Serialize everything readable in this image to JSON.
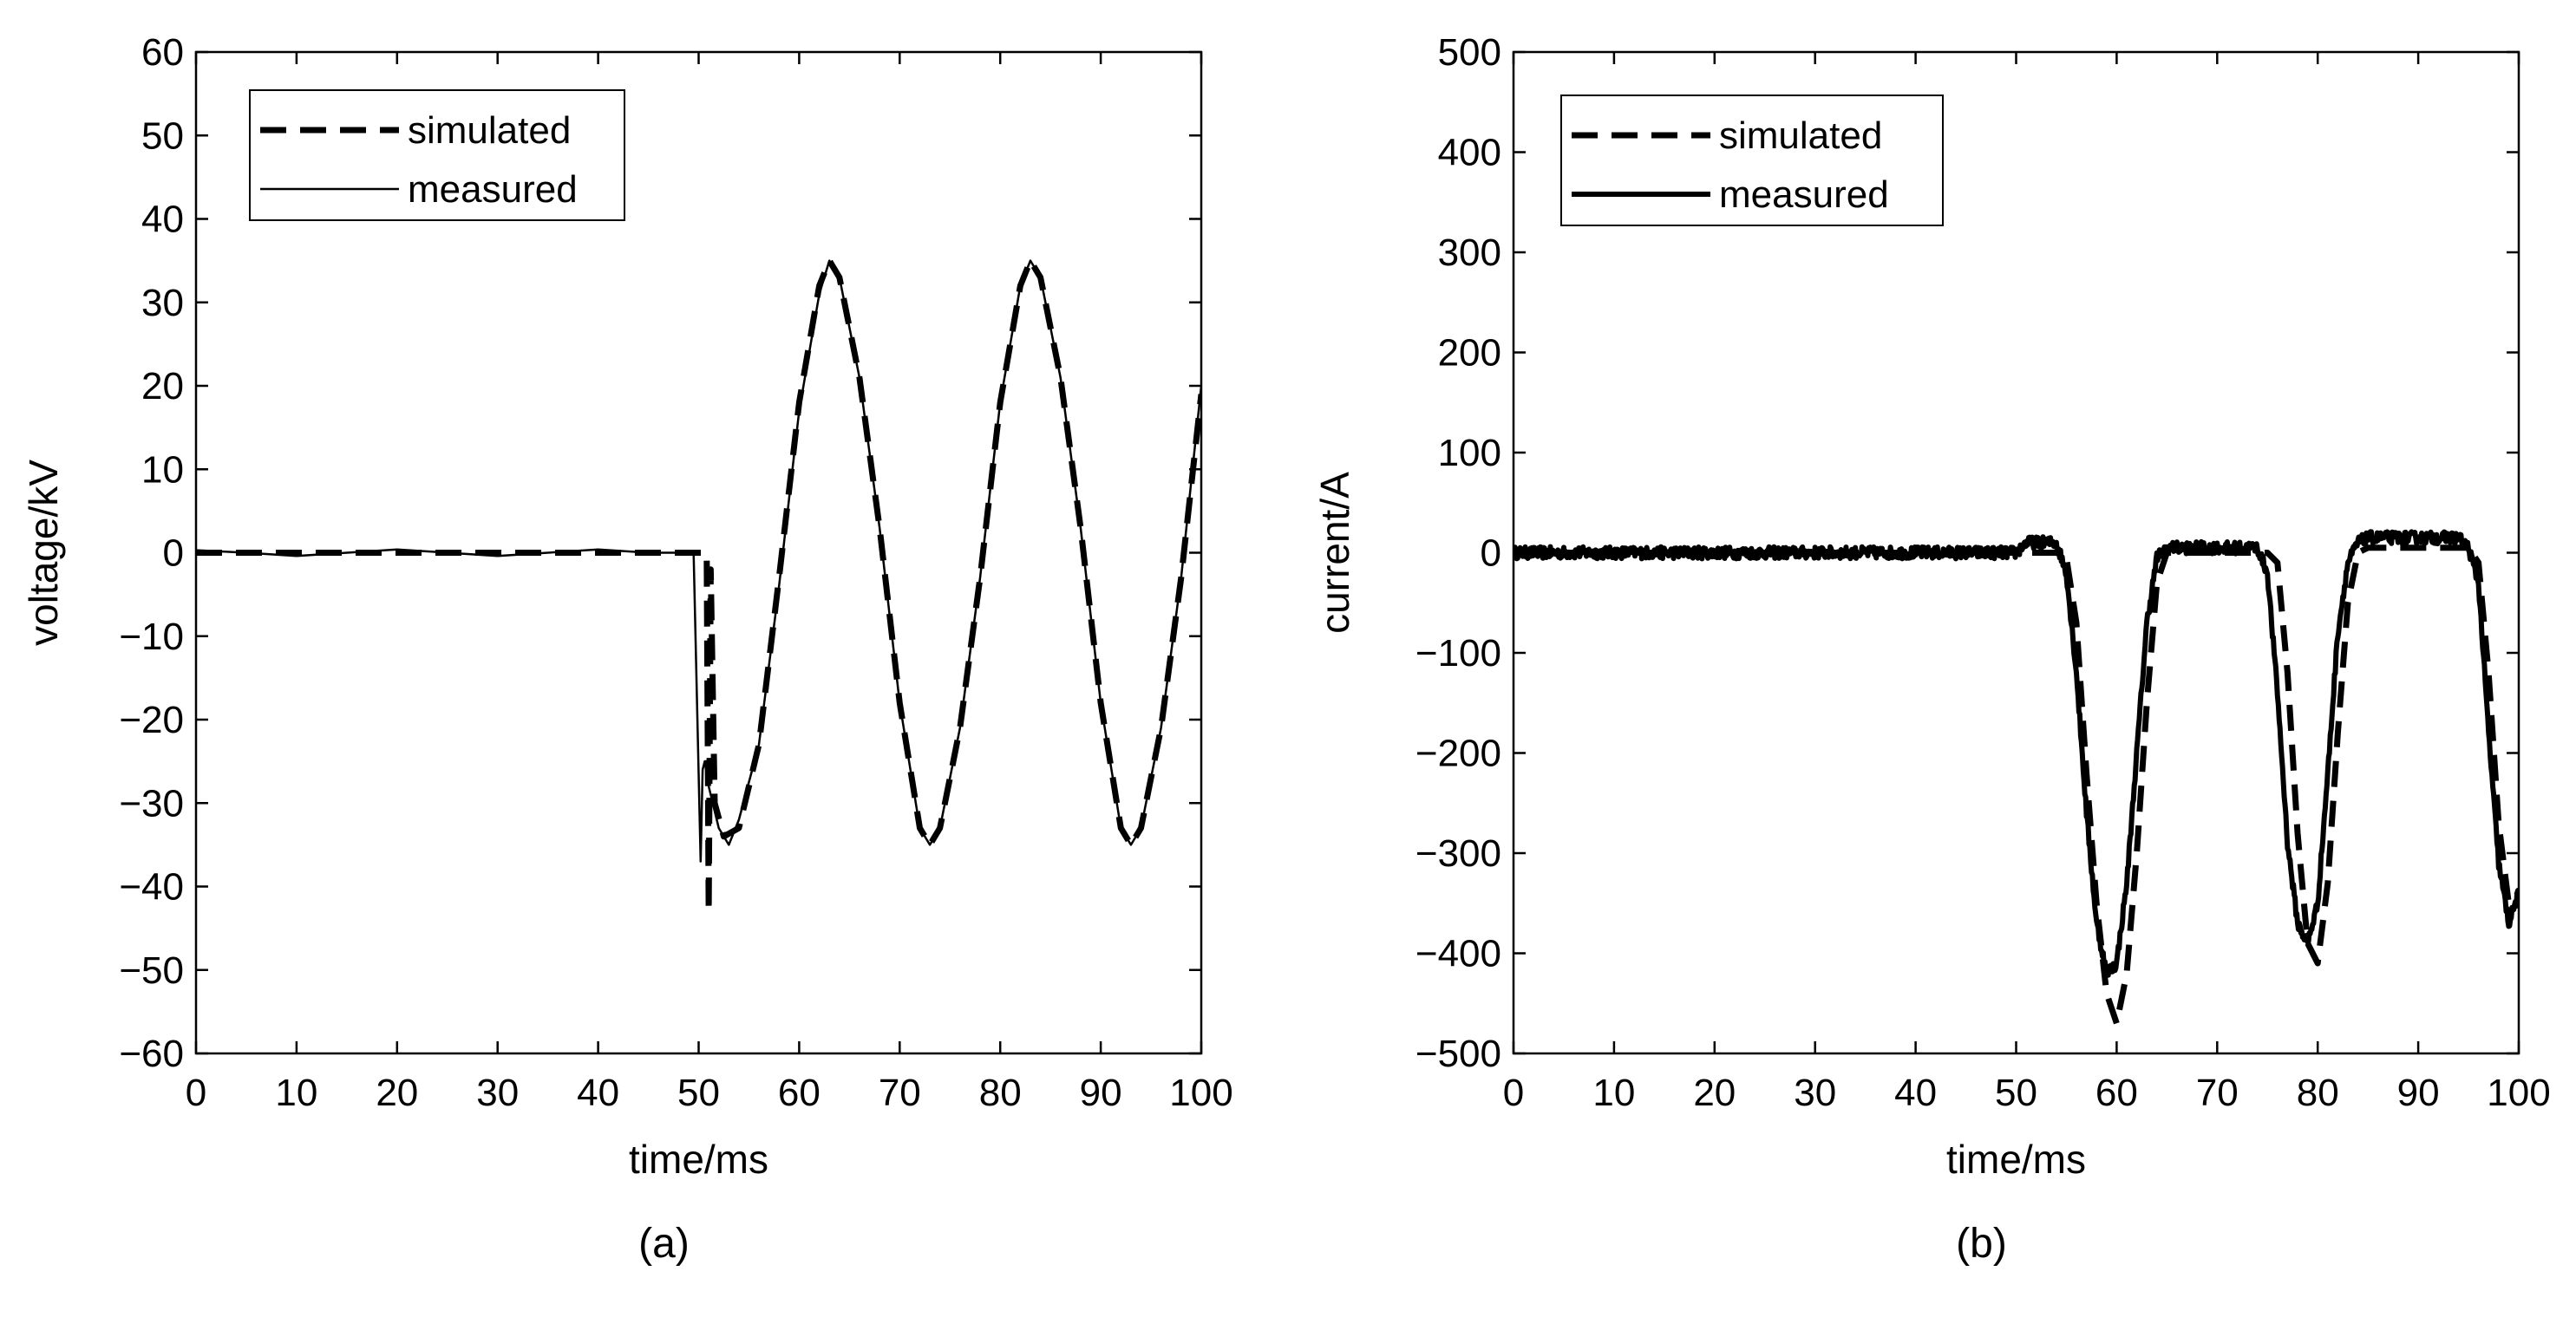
{
  "chart_data": [
    {
      "type": "line",
      "panel_label": "(a)",
      "xlabel": "time/ms",
      "ylabel": "voltage/kV",
      "xlim": [
        0,
        100
      ],
      "ylim": [
        -60,
        60
      ],
      "xticks": [
        0,
        10,
        20,
        30,
        40,
        50,
        60,
        70,
        80,
        90,
        100
      ],
      "yticks": [
        -60,
        -50,
        -40,
        -30,
        -20,
        -10,
        0,
        10,
        20,
        30,
        40,
        50,
        60
      ],
      "grid": false,
      "legend_position": "top-left",
      "series": [
        {
          "name": "simulated",
          "style": "dashed",
          "color": "#000000",
          "x": [
            0,
            10,
            20,
            30,
            40,
            48,
            50.8,
            51.0,
            51.2,
            51.6,
            52.5,
            54,
            56,
            58,
            60,
            62,
            63,
            64,
            66,
            68,
            70,
            72,
            73,
            74,
            76,
            78,
            80,
            82,
            83,
            84,
            86,
            88,
            90,
            92,
            93,
            94,
            96,
            98,
            100
          ],
          "y": [
            0,
            0,
            0,
            0,
            0,
            0,
            0,
            -43,
            -2,
            -30,
            -34,
            -33,
            -23,
            -3,
            18,
            32,
            35,
            33,
            21,
            3,
            -18,
            -33,
            -35,
            -33,
            -21,
            -3,
            18,
            32,
            35,
            33,
            21,
            3,
            -18,
            -33,
            -35,
            -33,
            -21,
            -3,
            19
          ]
        },
        {
          "name": "measured",
          "style": "solid-thin",
          "color": "#000000",
          "x": [
            0,
            5,
            10,
            15,
            20,
            25,
            30,
            35,
            40,
            45,
            49.5,
            50.2,
            50.4,
            50.6,
            51,
            52,
            53,
            54,
            56,
            58,
            60,
            62,
            63,
            64,
            66,
            68,
            70,
            72,
            73,
            74,
            76,
            78,
            80,
            82,
            83,
            84,
            86,
            88,
            90,
            92,
            93,
            94,
            96,
            98,
            100
          ],
          "y": [
            0.3,
            0,
            -0.4,
            0,
            0.4,
            0,
            -0.4,
            0,
            0.4,
            0,
            0,
            -37,
            -26,
            -25,
            -28,
            -33,
            -35,
            -32,
            -23,
            -4,
            17,
            31,
            35,
            33,
            21,
            3,
            -18,
            -33,
            -35,
            -33,
            -21,
            -3,
            18,
            32,
            35,
            33,
            21,
            3,
            -18,
            -33,
            -35,
            -33,
            -21,
            -3,
            20
          ]
        }
      ]
    },
    {
      "type": "line",
      "panel_label": "(b)",
      "xlabel": "time/ms",
      "ylabel": "current/A",
      "xlim": [
        0,
        100
      ],
      "ylim": [
        -500,
        500
      ],
      "xticks": [
        0,
        10,
        20,
        30,
        40,
        50,
        60,
        70,
        80,
        90,
        100
      ],
      "yticks": [
        -500,
        -400,
        -300,
        -200,
        -100,
        0,
        100,
        200,
        300,
        400,
        500
      ],
      "grid": false,
      "legend_position": "top-left",
      "series": [
        {
          "name": "simulated",
          "style": "dashed",
          "color": "#000000",
          "x": [
            0,
            10,
            20,
            30,
            40,
            50,
            54,
            55,
            56,
            57,
            58,
            59,
            60,
            61,
            62,
            63,
            64,
            65,
            70,
            75,
            76,
            77,
            78,
            79,
            80,
            81,
            82,
            83,
            84,
            85,
            90,
            95,
            96,
            97,
            98,
            99,
            100
          ],
          "y": [
            0,
            0,
            0,
            0,
            0,
            0,
            0,
            -5,
            -70,
            -220,
            -350,
            -440,
            -470,
            -420,
            -300,
            -150,
            -30,
            0,
            0,
            0,
            -10,
            -120,
            -280,
            -390,
            -410,
            -330,
            -180,
            -50,
            0,
            5,
            5,
            5,
            -10,
            -120,
            -270,
            -350,
            -340
          ]
        },
        {
          "name": "measured",
          "style": "solid-thick",
          "color": "#000000",
          "noise": 6,
          "x": [
            0,
            10,
            20,
            30,
            40,
            50,
            50.5,
            51,
            54,
            55,
            56,
            57,
            58,
            59,
            60,
            61,
            62,
            63,
            64,
            65,
            70,
            74,
            75,
            76,
            77,
            78,
            79,
            80,
            81,
            82,
            83,
            84,
            85,
            90,
            94,
            95,
            96,
            97,
            98,
            99,
            100
          ],
          "y": [
            0,
            0,
            0,
            0,
            0,
            0,
            5,
            10,
            10,
            -20,
            -120,
            -260,
            -370,
            -420,
            -410,
            -330,
            -200,
            -70,
            -5,
            5,
            5,
            5,
            -20,
            -140,
            -290,
            -370,
            -390,
            -350,
            -220,
            -80,
            -10,
            10,
            15,
            15,
            15,
            5,
            -30,
            -180,
            -310,
            -370,
            -340
          ]
        }
      ]
    }
  ]
}
